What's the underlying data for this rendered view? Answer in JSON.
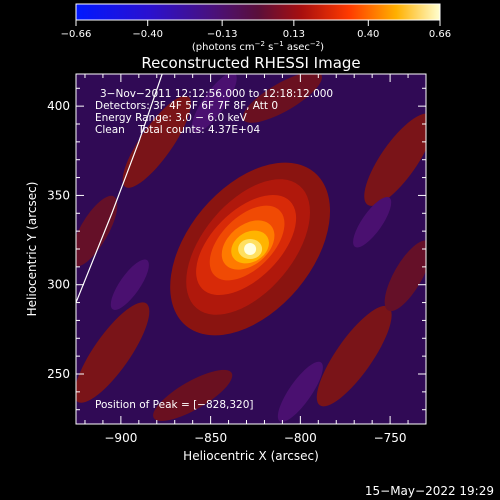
{
  "chart_data": {
    "type": "heatmap",
    "title": "Reconstructed RHESSI Image",
    "xlabel": "Heliocentric X (arcsec)",
    "ylabel": "Heliocentric Y (arcsec)",
    "xlim": [
      -925,
      -730
    ],
    "ylim": [
      222,
      418
    ],
    "xticks": [
      {
        "value": -900,
        "label": "−900"
      },
      {
        "value": -850,
        "label": "−850"
      },
      {
        "value": -800,
        "label": "−800"
      },
      {
        "value": -750,
        "label": "−750"
      }
    ],
    "yticks": [
      {
        "value": 250,
        "label": "250"
      },
      {
        "value": 300,
        "label": "300"
      },
      {
        "value": 350,
        "label": "350"
      },
      {
        "value": 400,
        "label": "400"
      }
    ],
    "colorbar": {
      "range": [
        -0.66,
        0.66
      ],
      "ticks": [
        {
          "value": -0.66,
          "label": "−0.66"
        },
        {
          "value": -0.4,
          "label": "−0.40"
        },
        {
          "value": -0.13,
          "label": "−0.13"
        },
        {
          "value": 0.13,
          "label": "0.13"
        },
        {
          "value": 0.4,
          "label": "0.40"
        },
        {
          "value": 0.66,
          "label": "0.66"
        }
      ],
      "unit_parts": [
        "(photons cm",
        "−2",
        " s",
        "−1",
        " asec",
        "−2",
        ")"
      ]
    },
    "annotations": [
      "3−Nov−2011 12:12:56.000 to 12:18:12.000",
      "Detectors: 3F 4F 5F 6F 7F 8F, Att 0",
      "Energy Range: 3.0 − 6.0 keV",
      "Clean    Total counts: 4.37E+04"
    ],
    "peak_label": "Position of Peak = [−828,320]",
    "peak": {
      "x": -828,
      "y": 320
    },
    "limb_curve": [
      [
        -925,
        290
      ],
      [
        -905,
        340
      ],
      [
        -890,
        380
      ],
      [
        -877,
        418
      ]
    ]
  },
  "footer_date": "15−May−2022 19:29"
}
